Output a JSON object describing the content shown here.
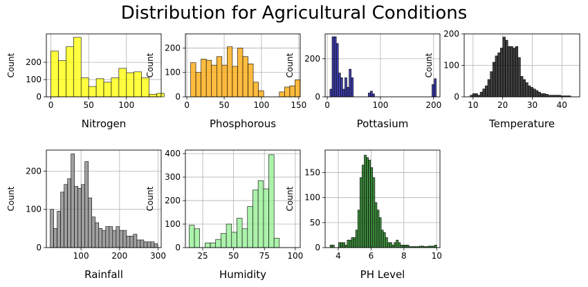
{
  "title": "Distribution for Agricultural Conditions",
  "chart_data": [
    {
      "type": "bar",
      "xlabel": "Nitrogen",
      "ylabel": "Count",
      "color": "#ffff00",
      "xlim": [
        -6,
        146
      ],
      "ylim": [
        0,
        365
      ],
      "xticks": [
        0,
        50,
        100
      ],
      "yticks": [
        0,
        100,
        200
      ],
      "grid": true,
      "bin_start": 0,
      "bin_width": 10,
      "values": [
        265,
        210,
        290,
        345,
        110,
        60,
        105,
        85,
        110,
        165,
        140,
        145,
        110,
        15,
        20
      ]
    },
    {
      "type": "bar",
      "xlabel": "Phosphorous",
      "ylabel": "Count",
      "color": "#ffa500",
      "xlim": [
        -2,
        152
      ],
      "ylim": [
        0,
        258
      ],
      "xticks": [
        0,
        50,
        100,
        150
      ],
      "yticks": [
        0,
        100,
        200
      ],
      "grid": true,
      "bin_start": 5,
      "bin_width": 7,
      "values": [
        140,
        100,
        155,
        150,
        130,
        165,
        130,
        205,
        125,
        200,
        165,
        135,
        60,
        25,
        0,
        0,
        0,
        20,
        40,
        45,
        70
      ]
    },
    {
      "type": "bar",
      "xlabel": "Pottasium",
      "ylabel": "Count",
      "color": "#00008b",
      "xlim": [
        -4,
        212
      ],
      "ylim": [
        0,
        330
      ],
      "xticks": [
        0,
        100,
        200
      ],
      "yticks": [
        0,
        200
      ],
      "grid": true,
      "bin_start": 5,
      "bin_width": 4,
      "values": [
        40,
        315,
        315,
        280,
        125,
        100,
        40,
        100,
        50,
        145,
        100,
        0,
        0,
        0,
        0,
        0,
        0,
        0,
        20,
        30,
        15,
        0,
        0,
        0,
        0,
        0,
        0,
        0,
        0,
        0,
        0,
        0,
        0,
        0,
        0,
        0,
        0,
        0,
        0,
        0,
        0,
        0,
        0,
        0,
        0,
        0,
        0,
        0,
        65,
        95
      ]
    },
    {
      "type": "bar",
      "xlabel": "Temperature",
      "ylabel": "Count",
      "color": "#000000",
      "xlim": [
        7,
        46
      ],
      "ylim": [
        0,
        200
      ],
      "xticks": [
        10,
        20,
        30,
        40
      ],
      "yticks": [
        0,
        100,
        200
      ],
      "grid": true,
      "bin_start": 9,
      "bin_width": 0.85,
      "values": [
        5,
        10,
        10,
        5,
        15,
        25,
        35,
        55,
        80,
        110,
        130,
        140,
        155,
        190,
        180,
        160,
        160,
        155,
        160,
        125,
        65,
        55,
        45,
        35,
        30,
        25,
        20,
        15,
        10,
        10,
        8,
        5,
        5,
        5,
        5,
        5,
        3,
        3,
        3,
        3
      ]
    },
    {
      "type": "bar",
      "xlabel": "Rainfall",
      "ylabel": "Count",
      "color": "#808080",
      "xlim": [
        10,
        308
      ],
      "ylim": [
        0,
        255
      ],
      "xticks": [
        100,
        200,
        300
      ],
      "yticks": [
        0,
        100,
        200
      ],
      "grid": true,
      "bin_start": 20,
      "bin_width": 9,
      "values": [
        100,
        50,
        95,
        145,
        165,
        180,
        245,
        160,
        155,
        165,
        225,
        130,
        80,
        65,
        50,
        45,
        55,
        55,
        45,
        55,
        45,
        45,
        30,
        30,
        35,
        20,
        20,
        15,
        15,
        15,
        10
      ]
    },
    {
      "type": "bar",
      "xlabel": "Humidity",
      "ylabel": "Count",
      "color": "#90ee90",
      "xlim": [
        11,
        104
      ],
      "ylim": [
        0,
        415
      ],
      "xticks": [
        25,
        50,
        75,
        100
      ],
      "yticks": [
        0,
        100,
        200,
        300,
        400
      ],
      "grid": true,
      "bin_start": 14,
      "bin_width": 4.3,
      "values": [
        95,
        80,
        0,
        20,
        20,
        35,
        60,
        100,
        65,
        125,
        80,
        175,
        245,
        285,
        250,
        395,
        40
      ]
    },
    {
      "type": "bar",
      "xlabel": "PH Level",
      "ylabel": "Count",
      "color": "#006400",
      "xlim": [
        3.2,
        10.2
      ],
      "ylim": [
        0,
        195
      ],
      "xticks": [
        4,
        6,
        8,
        10
      ],
      "yticks": [
        0,
        50,
        100,
        150
      ],
      "grid": true,
      "bin_start": 3.5,
      "bin_width": 0.13,
      "values": [
        5,
        5,
        0,
        0,
        10,
        10,
        10,
        5,
        15,
        15,
        20,
        20,
        35,
        75,
        140,
        165,
        185,
        180,
        175,
        160,
        140,
        90,
        75,
        60,
        35,
        30,
        20,
        10,
        10,
        5,
        10,
        15,
        10,
        5,
        5,
        5,
        5,
        2,
        2,
        2,
        2,
        2,
        3,
        3,
        2,
        2,
        3,
        3,
        3,
        5
      ]
    }
  ]
}
